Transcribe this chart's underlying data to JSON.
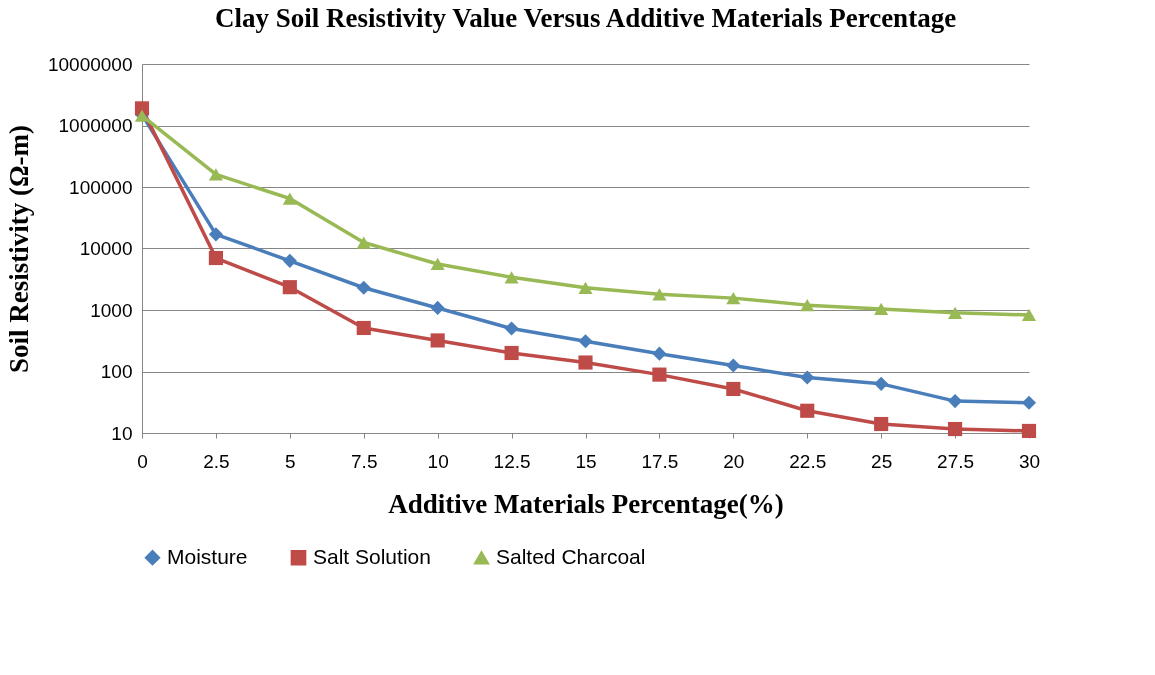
{
  "chart_data": {
    "type": "line",
    "title": "Clay Soil Resistivity Value Versus Additive Materials Percentage",
    "xlabel": "Additive Materials Percentage(%)",
    "ylabel": "Soil Resistivity (Ω-m)",
    "categories": [
      "0",
      "2.5",
      "5",
      "7.5",
      "10",
      "12.5",
      "15",
      "17.5",
      "20",
      "22.5",
      "25",
      "27.5",
      "30"
    ],
    "log": "y",
    "ylim": [
      10,
      10000000
    ],
    "yticks": [
      10,
      100,
      1000,
      10000,
      100000,
      1000000,
      10000000
    ],
    "grid": "y",
    "legend": "bottom",
    "series": [
      {
        "name": "Moisture",
        "color": "#4a7ebb",
        "marker": "diamond",
        "values": [
          1500000,
          17000,
          6300,
          2300,
          1080,
          500,
          310,
          195,
          125,
          80,
          63,
          33,
          31
        ]
      },
      {
        "name": "Salt Solution",
        "color": "#be4b48",
        "marker": "square",
        "values": [
          1900000,
          7000,
          2350,
          510,
          320,
          200,
          140,
          89,
          52,
          23,
          14,
          11.6,
          10.8
        ]
      },
      {
        "name": "Salted Charcoal",
        "color": "#98b954",
        "marker": "triangle",
        "values": [
          1450000,
          160000,
          65000,
          12500,
          5600,
          3400,
          2300,
          1800,
          1560,
          1200,
          1040,
          900,
          830
        ]
      }
    ]
  }
}
